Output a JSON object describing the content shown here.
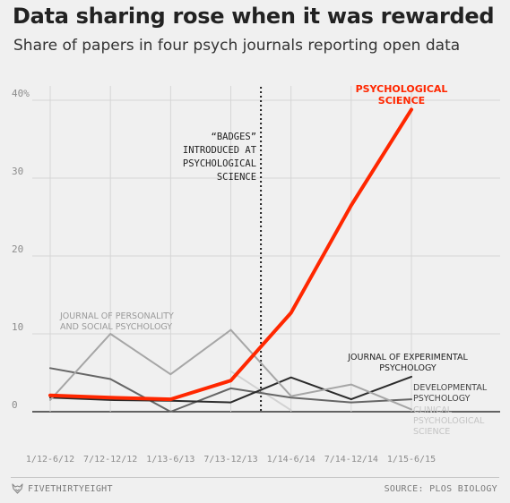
{
  "chart_data": {
    "type": "line",
    "title": "Data sharing rose when it was rewarded",
    "subtitle": "Share of papers in four psych journals reporting open data",
    "categories": [
      "1/12-6/12",
      "7/12-12/12",
      "1/13-6/13",
      "7/13-12/13",
      "1/14-6/14",
      "7/14-12/14",
      "1/15-6/15"
    ],
    "ylim": [
      0,
      40
    ],
    "yticks": [
      0,
      10,
      20,
      30,
      40
    ],
    "ytick_labels": [
      "0",
      "10",
      "20",
      "30",
      "40%"
    ],
    "grid": true,
    "series": [
      {
        "name": "PSYCHOLOGICAL SCIENCE",
        "color": "#ff2700",
        "values": [
          2.1,
          1.8,
          1.6,
          4.0,
          12.7,
          26.5,
          38.8
        ]
      },
      {
        "name": "JOURNAL OF PERSONALITY AND SOCIAL PSYCHOLOGY",
        "color": "#a6a6a6",
        "values": [
          1.5,
          10.0,
          4.8,
          10.5,
          2.0,
          3.5,
          0.3
        ]
      },
      {
        "name": "JOURNAL OF EXPERIMENTAL PSYCHOLOGY",
        "color": "#2b2b2b",
        "values": [
          1.8,
          1.5,
          1.4,
          1.2,
          4.4,
          1.6,
          4.5
        ]
      },
      {
        "name": "DEVELOPMENTAL PSYCHOLOGY",
        "color": "#666666",
        "values": [
          5.6,
          4.2,
          0.0,
          3.0,
          1.8,
          1.2,
          1.6
        ]
      },
      {
        "name": "CLINICAL PSYCHOLOGICAL SCIENCE",
        "color": "#d2d2d2",
        "values": [
          null,
          null,
          null,
          5.2,
          0.2,
          null,
          null
        ]
      }
    ],
    "annotation": {
      "at_x": 3.5,
      "lines": [
        "“BADGES”",
        "INTRODUCED AT",
        "PSYCHOLOGICAL",
        "SCIENCE"
      ]
    },
    "labels": {
      "psych_science": [
        "PSYCHOLOGICAL",
        "SCIENCE"
      ],
      "jpsp": [
        "JOURNAL OF PERSONALITY",
        "AND SOCIAL PSYCHOLOGY"
      ],
      "jep": [
        "JOURNAL OF EXPERIMENTAL",
        "PSYCHOLOGY"
      ],
      "devpsych": [
        "DEVELOPMENTAL",
        "PSYCHOLOGY"
      ],
      "clinical": [
        "CLINICAL",
        "PSYCHOLOGICAL",
        "SCIENCE"
      ]
    }
  },
  "footer": {
    "brand": "FIVETHIRTYEIGHT",
    "source": "SOURCE: PLOS BIOLOGY"
  }
}
